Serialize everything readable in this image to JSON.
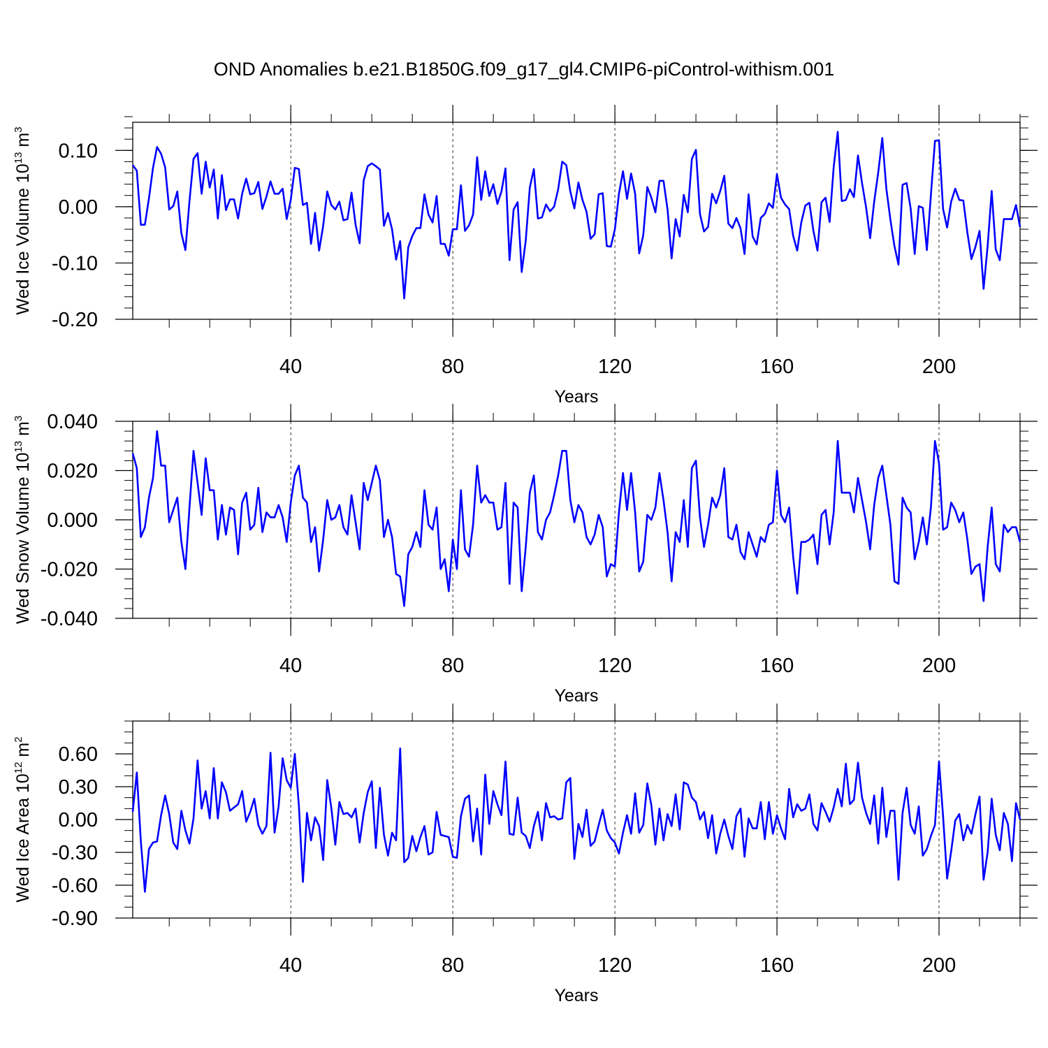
{
  "title": "OND Anomalies b.e21.B1850G.f09_g17_gl4.CMIP6-piControl-withism.001",
  "line_color": "#0000ff",
  "chart_data": [
    {
      "type": "line",
      "title": "",
      "xlabel": "Years",
      "ylabel": {
        "main": "Wed Ice Volume 10",
        "exp": "13",
        "unit": " m",
        "unit_exp": "3"
      },
      "xlim": [
        1,
        220
      ],
      "ylim": [
        -0.2,
        0.15
      ],
      "x_ticks": [
        40,
        80,
        120,
        160,
        200
      ],
      "x_tick_labels": [
        "40",
        "80",
        "120",
        "160",
        "200"
      ],
      "y_ticks": [
        -0.2,
        -0.1,
        0.0,
        0.1
      ],
      "y_tick_labels": [
        "-0.20",
        "-0.10",
        "0.00",
        "0.10"
      ],
      "y_minor_step": 0.02,
      "grid": "dashed vertical lines at 40, 80, 120, 160, 200",
      "series": [
        {
          "name": "Wed Ice Volume",
          "x_start": 1,
          "x_step": 1,
          "values": [
            0.074,
            0.064,
            -0.032,
            -0.032,
            0.015,
            0.069,
            0.106,
            0.094,
            0.07,
            -0.005,
            0.001,
            0.027,
            -0.047,
            -0.077,
            0.01,
            0.085,
            0.095,
            0.023,
            0.08,
            0.034,
            0.066,
            -0.021,
            0.056,
            -0.006,
            0.013,
            0.013,
            -0.021,
            0.023,
            0.05,
            0.022,
            0.024,
            0.044,
            -0.004,
            0.018,
            0.045,
            0.023,
            0.023,
            0.032,
            -0.022,
            0.012,
            0.069,
            0.067,
            0.003,
            0.007,
            -0.066,
            -0.011,
            -0.078,
            -0.034,
            0.027,
            0.003,
            -0.005,
            0.009,
            -0.024,
            -0.022,
            0.025,
            -0.032,
            -0.065,
            0.047,
            0.072,
            0.077,
            0.072,
            0.066,
            -0.034,
            -0.011,
            -0.04,
            -0.094,
            -0.061,
            -0.163,
            -0.072,
            -0.052,
            -0.038,
            -0.038,
            0.022,
            -0.014,
            -0.028,
            0.019,
            -0.066,
            -0.066,
            -0.087,
            -0.04,
            -0.04,
            0.038,
            -0.043,
            -0.033,
            -0.014,
            0.088,
            0.012,
            0.063,
            0.019,
            0.04,
            0.005,
            0.027,
            0.068,
            -0.095,
            -0.005,
            0.008,
            -0.116,
            -0.06,
            0.034,
            0.067,
            -0.021,
            -0.019,
            0.004,
            -0.008,
            0.0,
            0.031,
            0.08,
            0.074,
            0.027,
            -0.003,
            0.043,
            0.012,
            -0.009,
            -0.057,
            -0.049,
            0.022,
            0.024,
            -0.07,
            -0.071,
            -0.04,
            0.023,
            0.063,
            0.014,
            0.059,
            0.023,
            -0.083,
            -0.051,
            0.035,
            0.016,
            -0.01,
            0.046,
            0.046,
            -0.005,
            -0.092,
            -0.022,
            -0.053,
            0.021,
            -0.01,
            0.085,
            0.101,
            -0.013,
            -0.044,
            -0.036,
            0.023,
            0.006,
            0.028,
            0.055,
            -0.03,
            -0.038,
            -0.02,
            -0.038,
            -0.084,
            0.022,
            -0.053,
            -0.067,
            -0.02,
            -0.013,
            0.006,
            -0.002,
            0.058,
            0.016,
            0.004,
            -0.004,
            -0.052,
            -0.078,
            -0.028,
            0.002,
            0.007,
            -0.043,
            -0.078,
            0.008,
            0.016,
            -0.027,
            0.07,
            0.133,
            0.01,
            0.012,
            0.031,
            0.017,
            0.091,
            0.042,
            -0.001,
            -0.056,
            0.009,
            0.061,
            0.122,
            0.032,
            -0.023,
            -0.07,
            -0.103,
            0.039,
            0.042,
            -0.003,
            -0.084,
            0.001,
            -0.002,
            -0.077,
            0.021,
            0.117,
            0.118,
            -0.004,
            -0.037,
            0.009,
            0.032,
            0.012,
            0.011,
            -0.046,
            -0.093,
            -0.071,
            -0.043,
            -0.146,
            -0.07,
            0.028,
            -0.076,
            -0.095,
            -0.022,
            -0.022,
            -0.022,
            0.003,
            -0.036
          ]
        }
      ]
    },
    {
      "type": "line",
      "title": "",
      "xlabel": "Years",
      "ylabel": {
        "main": "Wed Snow Volume 10",
        "exp": "13",
        "unit": " m",
        "unit_exp": "3"
      },
      "xlim": [
        1,
        220
      ],
      "ylim": [
        -0.04,
        0.04
      ],
      "x_ticks": [
        40,
        80,
        120,
        160,
        200
      ],
      "x_tick_labels": [
        "40",
        "80",
        "120",
        "160",
        "200"
      ],
      "y_ticks": [
        -0.04,
        -0.02,
        0.0,
        0.02,
        0.04
      ],
      "y_tick_labels": [
        "-0.040",
        "-0.020",
        "0.000",
        "0.020",
        "0.040"
      ],
      "y_minor_step": 0.004,
      "grid": "dashed vertical lines at 40, 80, 120, 160, 200",
      "series": [
        {
          "name": "Wed Snow Volume",
          "x_start": 1,
          "x_step": 1,
          "values": [
            0.027,
            0.021,
            -0.007,
            -0.003,
            0.009,
            0.017,
            0.036,
            0.022,
            0.022,
            -0.001,
            0.004,
            0.009,
            -0.009,
            -0.02,
            0.005,
            0.028,
            0.015,
            0.002,
            0.025,
            0.012,
            0.012,
            -0.008,
            0.006,
            -0.006,
            0.005,
            0.004,
            -0.014,
            0.007,
            0.011,
            -0.004,
            -0.002,
            0.013,
            -0.005,
            0.003,
            0.001,
            0.001,
            0.006,
            0.001,
            -0.009,
            0.007,
            0.018,
            0.022,
            0.009,
            0.007,
            -0.009,
            -0.003,
            -0.021,
            -0.008,
            0.008,
            0.0,
            0.001,
            0.006,
            -0.003,
            -0.006,
            0.01,
            -0.001,
            -0.012,
            0.015,
            0.008,
            0.015,
            0.022,
            0.016,
            -0.007,
            0.0,
            -0.007,
            -0.022,
            -0.023,
            -0.035,
            -0.014,
            -0.011,
            -0.005,
            -0.011,
            0.012,
            -0.002,
            -0.004,
            0.005,
            -0.02,
            -0.016,
            -0.029,
            -0.008,
            -0.02,
            0.012,
            -0.012,
            -0.015,
            -0.002,
            0.022,
            0.007,
            0.01,
            0.007,
            0.007,
            -0.004,
            -0.003,
            0.015,
            -0.026,
            0.007,
            0.005,
            -0.029,
            -0.011,
            0.011,
            0.018,
            -0.005,
            -0.008,
            0.0,
            0.003,
            0.01,
            0.018,
            0.028,
            0.028,
            0.008,
            -0.001,
            0.006,
            0.003,
            -0.007,
            -0.01,
            -0.006,
            0.002,
            -0.003,
            -0.023,
            -0.018,
            -0.019,
            0.003,
            0.019,
            0.004,
            0.019,
            0.003,
            -0.021,
            -0.017,
            0.002,
            0.0,
            0.005,
            0.019,
            0.008,
            -0.005,
            -0.025,
            -0.005,
            -0.009,
            0.008,
            -0.011,
            0.021,
            0.024,
            0.001,
            -0.011,
            -0.002,
            0.009,
            0.005,
            0.01,
            0.021,
            -0.007,
            -0.008,
            -0.002,
            -0.013,
            -0.016,
            -0.005,
            -0.01,
            -0.015,
            -0.007,
            -0.009,
            -0.002,
            -0.001,
            0.02,
            0.002,
            -0.001,
            0.005,
            -0.015,
            -0.03,
            -0.009,
            -0.009,
            -0.008,
            -0.006,
            -0.018,
            0.002,
            0.004,
            -0.01,
            0.003,
            0.032,
            0.011,
            0.011,
            0.011,
            0.003,
            0.017,
            0.008,
            -0.001,
            -0.012,
            0.006,
            0.017,
            0.022,
            0.01,
            -0.002,
            -0.025,
            -0.026,
            0.009,
            0.005,
            0.003,
            -0.016,
            -0.009,
            0.001,
            -0.01,
            0.005,
            0.032,
            0.023,
            -0.004,
            -0.003,
            0.007,
            0.004,
            -0.001,
            0.003,
            -0.008,
            -0.022,
            -0.019,
            -0.018,
            -0.033,
            -0.011,
            0.005,
            -0.018,
            -0.021,
            -0.002,
            -0.005,
            -0.003,
            -0.003,
            -0.009
          ]
        }
      ]
    },
    {
      "type": "line",
      "title": "",
      "xlabel": "Years",
      "ylabel": {
        "main": "Wed Ice Area 10",
        "exp": "12",
        "unit": " m",
        "unit_exp": "2"
      },
      "xlim": [
        1,
        220
      ],
      "ylim": [
        -0.9,
        0.9
      ],
      "x_ticks": [
        40,
        80,
        120,
        160,
        200
      ],
      "x_tick_labels": [
        "40",
        "80",
        "120",
        "160",
        "200"
      ],
      "y_ticks": [
        -0.9,
        -0.6,
        -0.3,
        0.0,
        0.3,
        0.6
      ],
      "y_tick_labels": [
        "-0.90",
        "-0.60",
        "-0.30",
        "0.00",
        "0.30",
        "0.60"
      ],
      "y_minor_step": 0.1,
      "grid": "dashed vertical lines at 40, 80, 120, 160, 200",
      "series": [
        {
          "name": "Wed Ice Area",
          "x_start": 1,
          "x_step": 1,
          "values": [
            0.07,
            0.43,
            -0.2,
            -0.66,
            -0.27,
            -0.21,
            -0.2,
            0.04,
            0.22,
            0.05,
            -0.21,
            -0.27,
            0.08,
            -0.1,
            -0.22,
            0.01,
            0.54,
            0.1,
            0.26,
            0.01,
            0.47,
            0.01,
            0.34,
            0.25,
            0.08,
            0.11,
            0.14,
            0.26,
            -0.02,
            0.07,
            0.19,
            -0.05,
            -0.13,
            -0.06,
            0.61,
            -0.12,
            0.12,
            0.56,
            0.36,
            0.29,
            0.6,
            0.13,
            -0.57,
            0.06,
            -0.19,
            0.02,
            -0.06,
            -0.37,
            0.36,
            0.11,
            -0.23,
            0.16,
            0.05,
            0.06,
            0.02,
            0.1,
            -0.21,
            0.06,
            0.25,
            0.35,
            -0.26,
            0.29,
            -0.14,
            -0.33,
            -0.12,
            -0.19,
            0.65,
            -0.39,
            -0.35,
            -0.15,
            -0.29,
            -0.16,
            -0.06,
            -0.32,
            -0.3,
            0.07,
            -0.14,
            -0.15,
            -0.16,
            -0.34,
            -0.35,
            0.03,
            0.19,
            0.22,
            -0.2,
            0.1,
            -0.32,
            0.41,
            -0.04,
            0.26,
            0.14,
            0.04,
            0.53,
            -0.13,
            -0.14,
            0.2,
            -0.12,
            -0.15,
            -0.26,
            -0.06,
            0.07,
            -0.19,
            0.15,
            0.02,
            0.03,
            0.0,
            0.01,
            0.34,
            0.38,
            -0.36,
            -0.04,
            -0.16,
            0.09,
            -0.24,
            -0.2,
            -0.05,
            0.09,
            -0.1,
            -0.17,
            -0.21,
            -0.31,
            -0.12,
            0.04,
            -0.13,
            0.24,
            -0.12,
            -0.05,
            0.33,
            0.13,
            -0.23,
            0.1,
            -0.19,
            0.05,
            -0.06,
            0.23,
            -0.09,
            0.34,
            0.32,
            0.2,
            0.16,
            0.0,
            0.07,
            -0.17,
            0.04,
            -0.31,
            -0.13,
            0.0,
            -0.15,
            -0.27,
            0.03,
            0.1,
            -0.34,
            0.01,
            -0.08,
            -0.08,
            0.16,
            -0.18,
            0.16,
            -0.13,
            0.04,
            -0.08,
            -0.18,
            0.28,
            0.02,
            0.14,
            0.08,
            0.1,
            0.23,
            -0.04,
            -0.1,
            0.15,
            0.07,
            -0.02,
            0.11,
            0.28,
            0.12,
            0.51,
            0.14,
            0.18,
            0.52,
            0.2,
            0.06,
            -0.04,
            0.22,
            -0.22,
            0.29,
            -0.16,
            0.08,
            0.08,
            -0.55,
            0.06,
            0.29,
            -0.05,
            -0.13,
            0.12,
            -0.33,
            -0.27,
            -0.15,
            -0.05,
            0.53,
            0.03,
            -0.54,
            -0.29,
            -0.01,
            0.05,
            -0.19,
            -0.05,
            -0.13,
            0.05,
            0.21,
            -0.55,
            -0.3,
            0.19,
            -0.14,
            -0.28,
            0.06,
            -0.04,
            -0.38,
            0.15,
            0.0
          ]
        }
      ]
    }
  ]
}
